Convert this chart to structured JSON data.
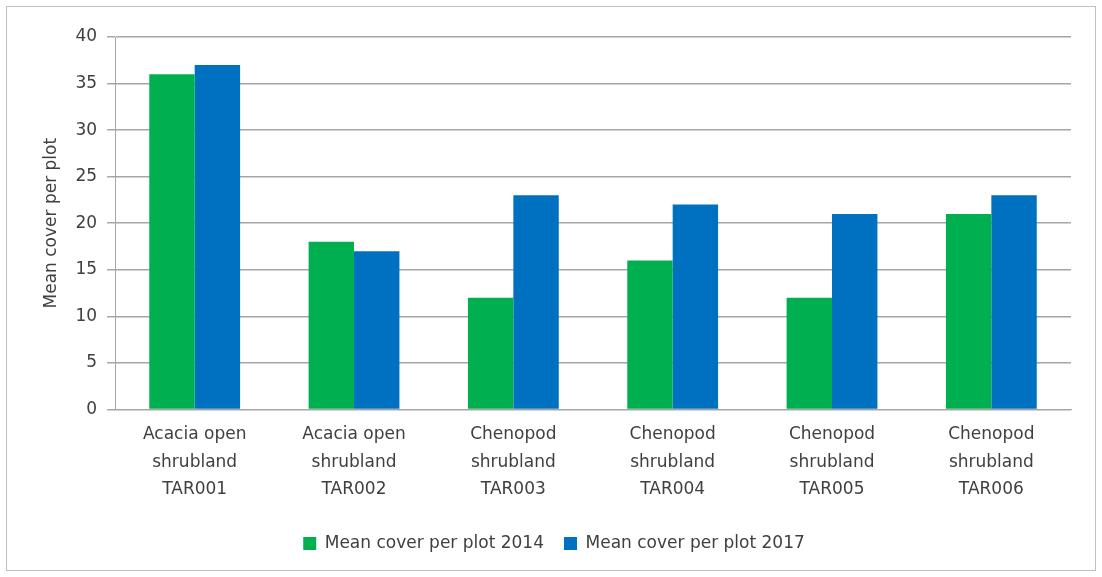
{
  "chart_data": {
    "type": "bar",
    "ylabel": "Mean cover per plot",
    "categories": [
      "Acacia open shrubland TAR001",
      "Acacia open shrubland TAR002",
      "Chenopod shrubland TAR003",
      "Chenopod shrubland TAR004",
      "Chenopod shrubland TAR005",
      "Chenopod shrubland TAR006"
    ],
    "series": [
      {
        "name": "Mean cover per plot 2014",
        "color": "#00b050",
        "values": [
          36,
          18,
          12,
          16,
          12,
          21
        ]
      },
      {
        "name": "Mean cover per plot 2017",
        "color": "#0070c0",
        "values": [
          37,
          17,
          23,
          22,
          21,
          23
        ]
      }
    ],
    "ylim": [
      0,
      40
    ],
    "yticks": [
      0,
      5,
      10,
      15,
      20,
      25,
      30,
      35,
      40
    ],
    "grid": "y",
    "legend": "bottom"
  }
}
